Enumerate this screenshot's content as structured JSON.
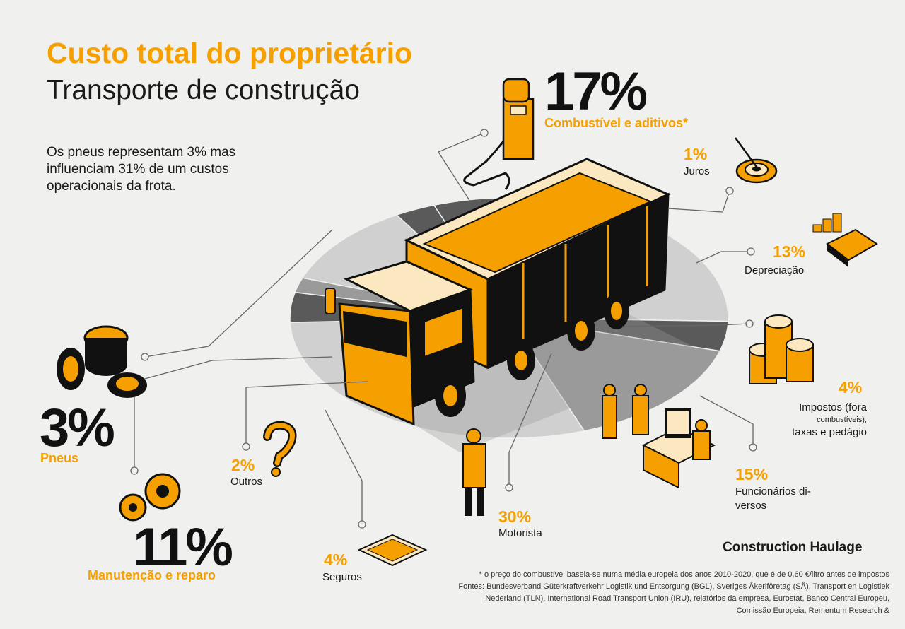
{
  "header": {
    "title": "Custo total do proprietário",
    "subtitle": "Transporte de construção",
    "intro": "Os pneus representam 3% mas influenciam 31% de um custos operacionais da frota."
  },
  "brand": "Construction Haulage",
  "footnote": "* o preço do combustível baseia-se numa média europeia dos anos 2010-2020, que é de 0,60 €/litro antes de impostos Fontes: Bundesverband Güterkraftverkehr Logistik und Entsorgung (BGL), Sveriges Åkeriföretag (SÅ), Transport en Logistiek Nederland (TLN), International Road Transport Union (IRU), relatórios da empresa, Eurostat, Banco Central Europeu, Comissão Europeia, Rementum Research &",
  "colors": {
    "accent": "#f5a000",
    "dark": "#1a1a1a",
    "pie_dark": "#5a5a5a",
    "pie_mid": "#9a9a9a",
    "pie_light": "#d0d0d0",
    "background": "#f0f0ef"
  },
  "chart_data": {
    "type": "pie",
    "title": "Custo total do proprietário",
    "subtitle": "Transporte de construção",
    "unit": "%",
    "slices": [
      {
        "label": "Combustível e aditivos*",
        "value": 17,
        "value_text": "17%",
        "icon": "fuel-pump-icon"
      },
      {
        "label": "Juros",
        "value": 1,
        "value_text": "1%",
        "icon": "target-icon"
      },
      {
        "label": "Depreciação",
        "value": 13,
        "value_text": "13%",
        "icon": "calculator-icon"
      },
      {
        "label_lines": [
          "Impostos (fora",
          "combustíveis),",
          "taxas e pedágio"
        ],
        "label": "Impostos (fora combustíveis), taxas e pedágio",
        "value": 4,
        "value_text": "4%",
        "icon": "coins-icon"
      },
      {
        "label_lines": [
          "Funcionários di-",
          "versos"
        ],
        "label": "Funcionários diversos",
        "value": 15,
        "value_text": "15%",
        "icon": "office-workers-icon"
      },
      {
        "label": "Motorista",
        "value": 30,
        "value_text": "30%",
        "icon": "driver-icon"
      },
      {
        "label": "Seguros",
        "value": 4,
        "value_text": "4%",
        "icon": "certificate-icon"
      },
      {
        "label": "Outros",
        "value": 2,
        "value_text": "2%",
        "icon": "question-mark-icon"
      },
      {
        "label": "Manutenção e reparo",
        "value": 11,
        "value_text": "11%",
        "icon": "gears-icon"
      },
      {
        "label": "Pneus",
        "value": 3,
        "value_text": "3%",
        "icon": "tires-icon"
      }
    ]
  }
}
